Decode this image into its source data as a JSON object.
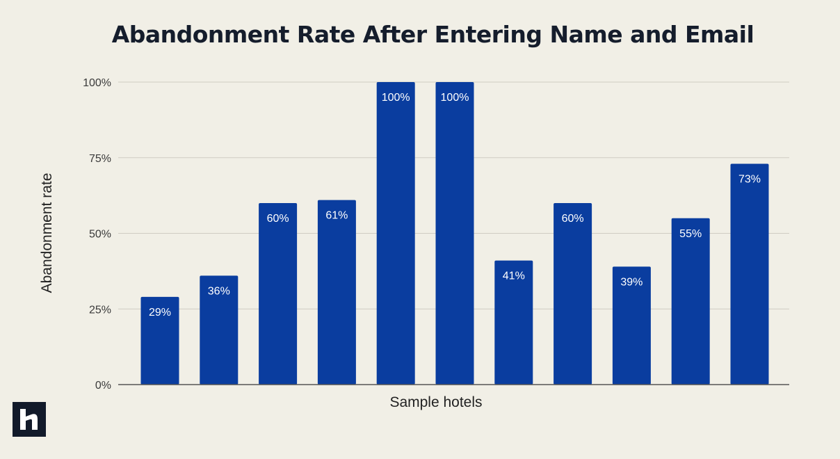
{
  "colors": {
    "background": "#f1efe6",
    "bar": "#0a3d9f",
    "gridline": "#cfccc2",
    "baseline": "#555555",
    "title": "#151d2c"
  },
  "logo": {
    "icon": "h-brand-logo-icon"
  },
  "chart_data": {
    "type": "bar",
    "title": "Abandonment Rate After Entering Name and Email",
    "xlabel": "Sample hotels",
    "ylabel": "Abandonment rate",
    "categories": [
      "",
      "",
      "",
      "",
      "",
      "",
      "",
      "",
      "",
      "",
      ""
    ],
    "values": [
      29,
      36,
      60,
      61,
      100,
      100,
      41,
      60,
      39,
      55,
      73
    ],
    "data_labels": [
      "29%",
      "36%",
      "60%",
      "61%",
      "100%",
      "100%",
      "41%",
      "60%",
      "39%",
      "55%",
      "73%"
    ],
    "ylim": [
      0,
      100
    ],
    "yticks": [
      0,
      25,
      50,
      75,
      100
    ],
    "ytick_labels": [
      "0%",
      "25%",
      "50%",
      "75%",
      "100%"
    ],
    "grid": true,
    "legend": false
  }
}
